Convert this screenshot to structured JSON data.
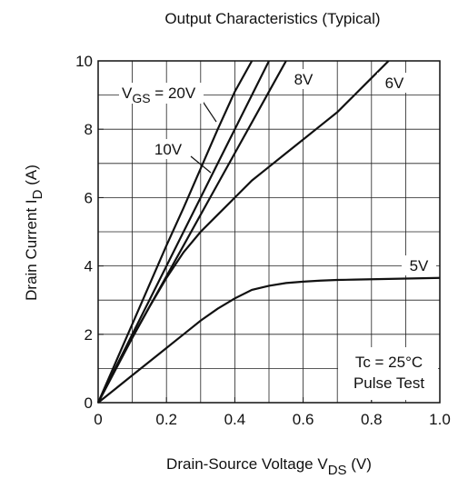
{
  "chart_data": {
    "type": "line",
    "title": "Output Characteristics (Typical)",
    "x_label": {
      "main": "Drain-Source Voltage  V",
      "sub": "DS",
      "unit": "  (V)"
    },
    "y_label": {
      "main": "Drain Current  I",
      "sub": "D",
      "unit": "  (A)"
    },
    "x": [
      0,
      0.05,
      0.1,
      0.15,
      0.2,
      0.25,
      0.3,
      0.35,
      0.4,
      0.45,
      0.5,
      0.55,
      0.6,
      0.65,
      0.7,
      0.75,
      0.8,
      0.85,
      0.9,
      0.95,
      1.0
    ],
    "series": [
      {
        "name": "20V",
        "color": "#111111",
        "values": [
          0,
          1.15,
          2.3,
          3.45,
          4.6,
          5.7,
          6.85,
          8.0,
          9.1,
          10,
          null,
          null,
          null,
          null,
          null,
          null,
          null,
          null,
          null,
          null,
          null
        ]
      },
      {
        "name": "10V",
        "color": "#111111",
        "values": [
          0,
          1.0,
          2.0,
          3.0,
          4.0,
          5.0,
          6.0,
          7.0,
          8.0,
          9.0,
          10,
          null,
          null,
          null,
          null,
          null,
          null,
          null,
          null,
          null,
          null
        ]
      },
      {
        "name": "8V",
        "color": "#111111",
        "values": [
          0,
          0.95,
          1.9,
          2.8,
          3.7,
          4.6,
          5.5,
          6.4,
          7.3,
          8.2,
          9.1,
          10,
          null,
          null,
          null,
          null,
          null,
          null,
          null,
          null,
          null
        ]
      },
      {
        "name": "6V",
        "color": "#111111",
        "values": [
          0,
          0.95,
          1.9,
          2.8,
          3.65,
          4.4,
          5.0,
          5.5,
          6.0,
          6.5,
          6.9,
          7.3,
          7.7,
          8.1,
          8.5,
          9.0,
          9.5,
          10,
          null,
          null,
          null
        ]
      },
      {
        "name": "5V",
        "color": "#111111",
        "values": [
          0,
          0.4,
          0.8,
          1.2,
          1.6,
          2.0,
          2.4,
          2.75,
          3.05,
          3.3,
          3.42,
          3.5,
          3.54,
          3.57,
          3.59,
          3.6,
          3.61,
          3.62,
          3.63,
          3.64,
          3.65
        ]
      }
    ],
    "vgs_label": {
      "main": "V",
      "sub": "GS",
      "eq": " = "
    },
    "annotations": [
      "Tc = 25°C",
      "Pulse Test"
    ],
    "xlim": [
      0,
      1.0
    ],
    "ylim": [
      0,
      10
    ],
    "xticks": [
      0,
      0.2,
      0.4,
      0.6,
      0.8,
      {
        "value": 1.0,
        "label": "1.0"
      }
    ],
    "yticks": [
      0,
      2,
      4,
      6,
      8,
      10
    ],
    "grid_x_step": 0.1,
    "grid_y_step": 1,
    "grid": true
  }
}
